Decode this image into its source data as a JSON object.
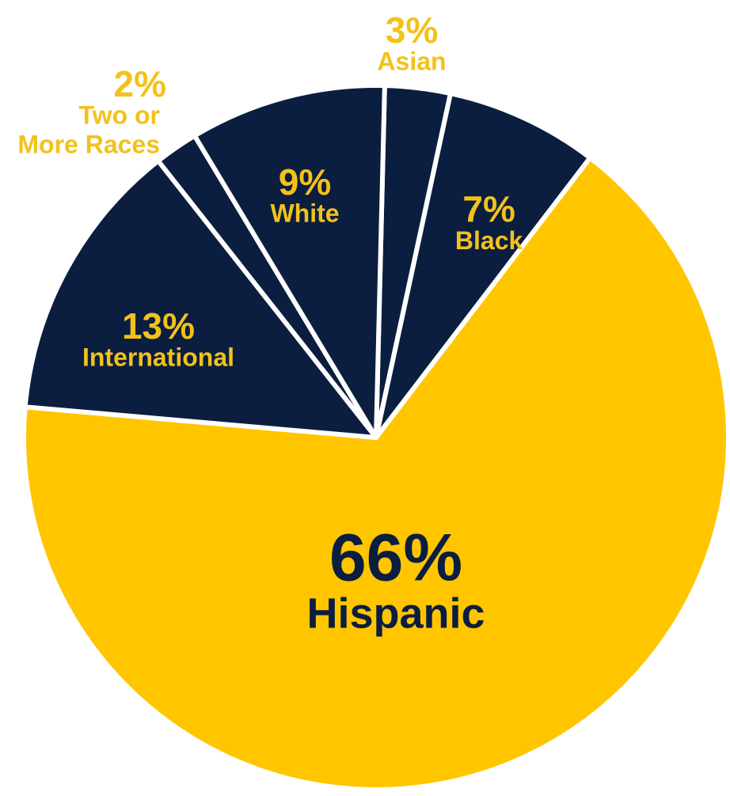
{
  "chart_data": {
    "type": "pie",
    "slices": [
      {
        "label": "Asian",
        "value_label": "3%",
        "value": 3,
        "color": "#0B1E40",
        "label_color": "#F2C21B",
        "label_outside": true
      },
      {
        "label": "Black",
        "value_label": "7%",
        "value": 7,
        "color": "#0B1E40",
        "label_color": "#F2C21B",
        "label_outside": false
      },
      {
        "label": "Hispanic",
        "value_label": "66%",
        "value": 66,
        "color": "#FFC600",
        "label_color": "#0B1E40",
        "label_outside": false
      },
      {
        "label": "International",
        "value_label": "13%",
        "value": 13,
        "color": "#0B1E40",
        "label_color": "#F2C21B",
        "label_outside": false
      },
      {
        "label": "Two or More Races",
        "label_lines": [
          "Two or",
          "More Races"
        ],
        "value_label": "2%",
        "value": 2,
        "color": "#0B1E40",
        "label_color": "#F2C21B",
        "label_outside": true
      },
      {
        "label": "White",
        "value_label": "9%",
        "value": 9,
        "color": "#0B1E40",
        "label_color": "#F2C21B",
        "label_outside": false
      }
    ],
    "colors": {
      "navy": "#0B1E40",
      "gold": "#FFC600",
      "label_gold": "#F2C21B",
      "separator": "#ffffff"
    }
  }
}
